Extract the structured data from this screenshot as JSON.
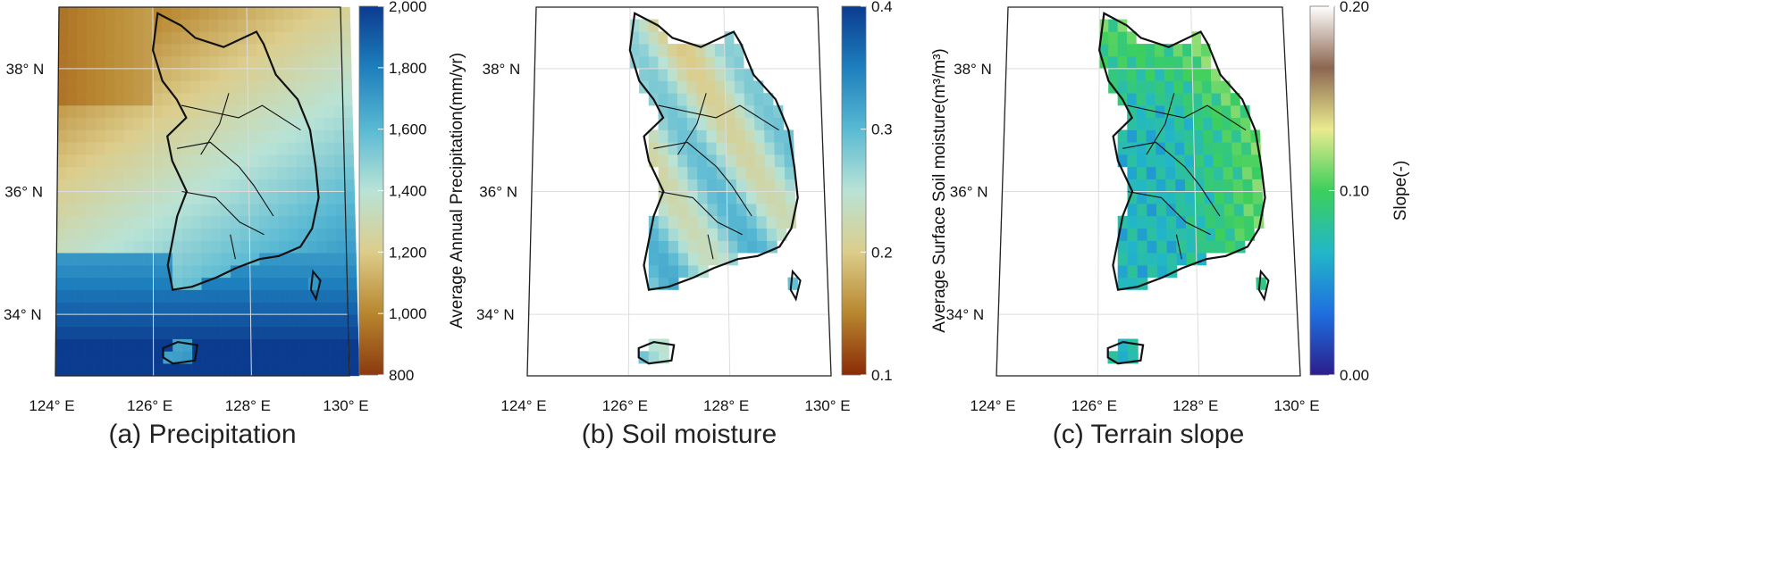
{
  "panels": [
    {
      "caption": "(a) Precipitation",
      "variable": "precipitation",
      "colorbar": {
        "title": "Average Annual  Precipitation(mm/yr)",
        "ticks": [
          "2,000",
          "1,800",
          "1,600",
          "1,400",
          "1,200",
          "1,000",
          "800"
        ],
        "tick_values": [
          2000,
          1800,
          1600,
          1400,
          1200,
          1000,
          800
        ],
        "min": 800,
        "max": 2000,
        "colors": [
          "#8b3a0f",
          "#b8862f",
          "#dccd8b",
          "#b9e3d6",
          "#59b9d3",
          "#1d7fbd",
          "#0b3b8f"
        ]
      }
    },
    {
      "caption": "(b) Soil moisture",
      "variable": "soil_moisture",
      "colorbar": {
        "title": "Average  Surface Soil moisture(m³/m³)",
        "ticks": [
          "0.4",
          "0.3",
          "0.2",
          "0.1"
        ],
        "tick_values": [
          0.4,
          0.3,
          0.2,
          0.1
        ],
        "min": 0.1,
        "max": 0.4,
        "colors": [
          "#8b2b06",
          "#b8862f",
          "#dccd8b",
          "#b9e3d6",
          "#59b9d3",
          "#1d7fbd",
          "#0b3b8f"
        ]
      }
    },
    {
      "caption": "(c) Terrain slope",
      "variable": "terrain_slope",
      "colorbar": {
        "title": "Slope(-)",
        "ticks": [
          "0.20",
          "0.10",
          "0.00"
        ],
        "tick_values": [
          0.2,
          0.1,
          0.0
        ],
        "min": 0.0,
        "max": 0.2,
        "colors": [
          "#2b1e8c",
          "#1f6fe0",
          "#22b7c8",
          "#3ccf5c",
          "#e9eb8e",
          "#8c6650",
          "#ffffff"
        ]
      }
    }
  ],
  "axes": {
    "lat_labels": [
      "38° N",
      "36° N",
      "34° N"
    ],
    "lat_values": [
      38,
      36,
      34
    ],
    "lon_labels": [
      "124° E",
      "126° E",
      "128° E",
      "130° E"
    ],
    "lon_values": [
      124,
      126,
      128,
      130
    ]
  },
  "colors": {
    "coastline": "#111111",
    "gridline": "#dddddd",
    "sea_blank": "#ffffff"
  }
}
